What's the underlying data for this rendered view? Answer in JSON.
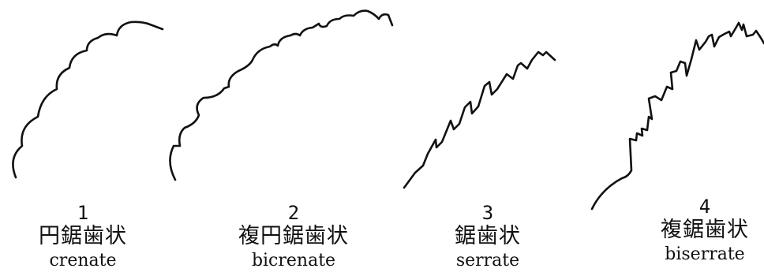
{
  "items": [
    {
      "number": "1",
      "japanese": "円鋸歯状",
      "english": "crenate"
    },
    {
      "number": "2",
      "japanese": "複円鋸歯状",
      "english": "bicrenate"
    },
    {
      "number": "3",
      "japanese": "鋸歯状",
      "english": "serrate"
    },
    {
      "number": "4",
      "japanese": "複鋸歯状",
      "english": "biserrate"
    }
  ],
  "colors": {
    "line": "#111111",
    "background": "#ffffff"
  }
}
